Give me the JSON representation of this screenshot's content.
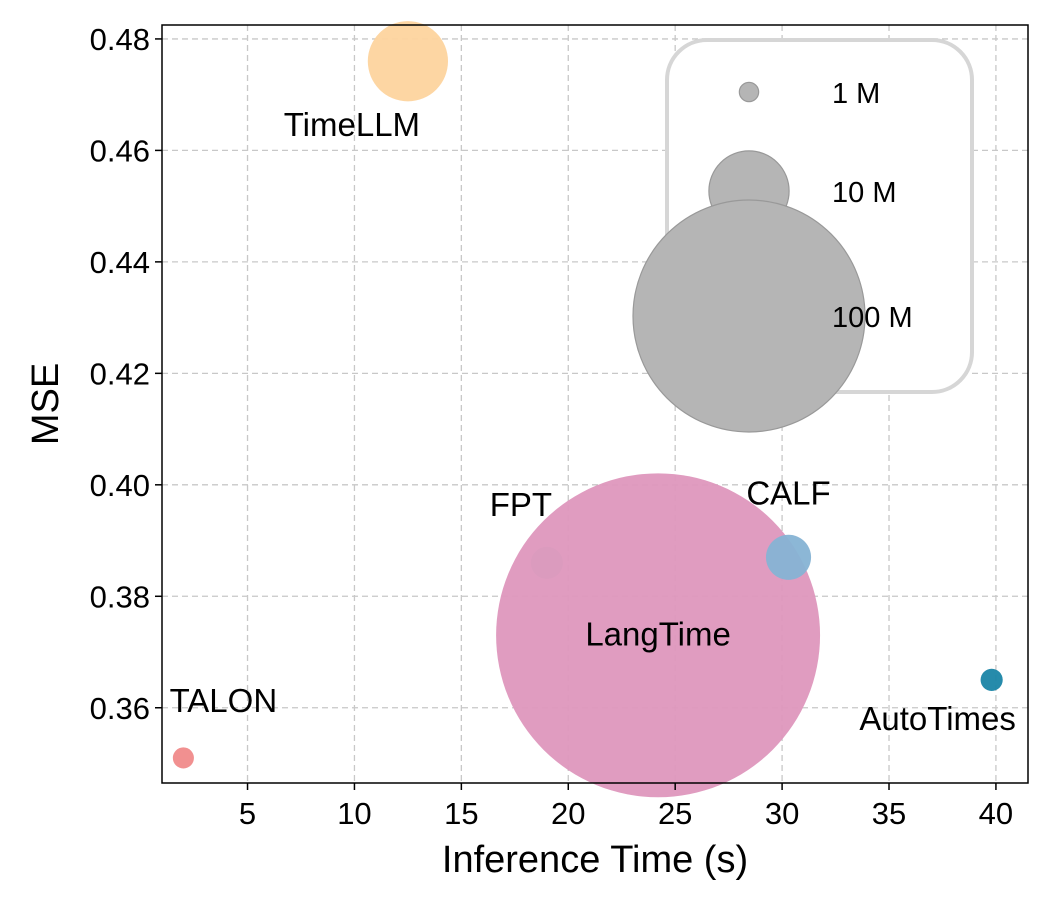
{
  "chart_data": {
    "type": "scatter",
    "xlabel": "Inference Time (s)",
    "ylabel": "MSE",
    "xlim": [
      1,
      41.5
    ],
    "ylim": [
      0.3465,
      0.4825
    ],
    "xticks": [
      5,
      10,
      15,
      20,
      25,
      30,
      35,
      40
    ],
    "yticks": [
      0.36,
      0.38,
      0.4,
      0.42,
      0.44,
      0.46,
      0.48
    ],
    "xtick_labels": [
      "5",
      "10",
      "15",
      "20",
      "25",
      "30",
      "35",
      "40"
    ],
    "ytick_labels": [
      "0.36",
      "0.38",
      "0.40",
      "0.42",
      "0.44",
      "0.46",
      "0.48"
    ],
    "grid": true,
    "size_encoding": "parameters (millions)",
    "points": [
      {
        "name": "TimeLLM",
        "x": 12.5,
        "y": 0.476,
        "params_m": 10.0,
        "color": "#fdd49e"
      },
      {
        "name": "FPT",
        "x": 19.0,
        "y": 0.386,
        "params_m": 1.0,
        "color": "#9edfd3"
      },
      {
        "name": "LangTime",
        "x": 24.2,
        "y": 0.373,
        "params_m": 200.0,
        "color": "#de97bd"
      },
      {
        "name": "CALF",
        "x": 30.3,
        "y": 0.387,
        "params_m": 2.5,
        "color": "#86b3d4"
      },
      {
        "name": "AutoTimes",
        "x": 39.8,
        "y": 0.365,
        "params_m": 0.3,
        "color": "#1a85a6"
      },
      {
        "name": "TALON",
        "x": 2.0,
        "y": 0.351,
        "params_m": 0.25,
        "color": "#f08a8a"
      }
    ],
    "legend": {
      "position": "top-right",
      "entries": [
        {
          "label": "1 M",
          "params_m": 1
        },
        {
          "label": "10 M",
          "params_m": 10
        },
        {
          "label": "100 M",
          "params_m": 100
        }
      ],
      "color": "#b5b5b5"
    }
  }
}
